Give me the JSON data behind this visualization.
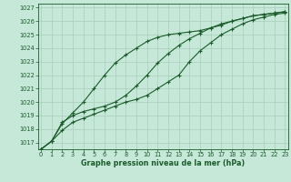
{
  "background_color": "#c6e8d8",
  "grid_color": "#aaccbb",
  "line_color": "#1a5c2a",
  "hours": [
    0,
    1,
    2,
    3,
    4,
    5,
    6,
    7,
    8,
    9,
    10,
    11,
    12,
    13,
    14,
    15,
    16,
    17,
    18,
    19,
    20,
    21,
    22,
    23
  ],
  "series1": [
    1016.5,
    1017.1,
    1017.9,
    1018.5,
    1018.8,
    1019.1,
    1019.4,
    1019.7,
    1020.0,
    1020.2,
    1020.5,
    1021.0,
    1021.5,
    1022.0,
    1023.0,
    1023.8,
    1024.4,
    1025.0,
    1025.4,
    1025.8,
    1026.1,
    1026.3,
    1026.5,
    1026.6
  ],
  "series2": [
    1016.5,
    1017.1,
    1018.5,
    1019.0,
    1019.3,
    1019.5,
    1019.7,
    1020.0,
    1020.5,
    1021.2,
    1022.0,
    1022.9,
    1023.6,
    1024.2,
    1024.7,
    1025.1,
    1025.5,
    1025.8,
    1026.0,
    1026.2,
    1026.4,
    1026.5,
    1026.6,
    1026.7
  ],
  "series3": [
    1016.5,
    1017.1,
    1018.4,
    1019.2,
    1020.0,
    1021.0,
    1022.0,
    1022.9,
    1023.5,
    1024.0,
    1024.5,
    1024.8,
    1025.0,
    1025.1,
    1025.2,
    1025.3,
    1025.5,
    1025.7,
    1026.0,
    1026.2,
    1026.4,
    1026.5,
    1026.6,
    1026.7
  ],
  "ylim_min": 1016.5,
  "ylim_max": 1027.3,
  "yticks": [
    1017,
    1018,
    1019,
    1020,
    1021,
    1022,
    1023,
    1024,
    1025,
    1026,
    1027
  ],
  "xlabel": "Graphe pression niveau de la mer (hPa)",
  "text_color": "#1a5c2a"
}
